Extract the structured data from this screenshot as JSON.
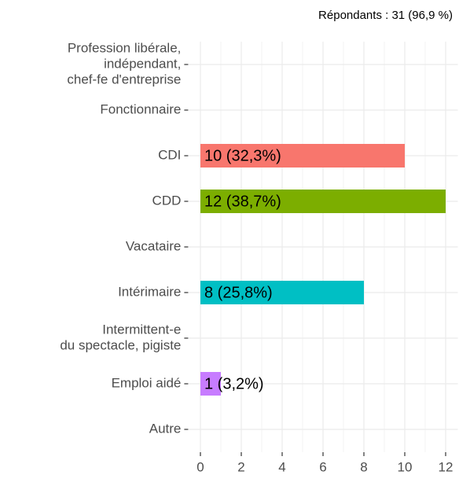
{
  "chart_data": {
    "type": "barh",
    "subtitle": "Répondants : 31 (96,9 %)",
    "categories": [
      [
        "Profession libérale,",
        "indépendant,",
        "chef-fe d'entreprise"
      ],
      [
        "Fonctionnaire"
      ],
      [
        "CDI"
      ],
      [
        "CDD"
      ],
      [
        "Vacataire"
      ],
      [
        "Intérimaire"
      ],
      [
        "Intermittent-e",
        "du spectacle, pigiste"
      ],
      [
        "Emploi aidé"
      ],
      [
        "Autre"
      ]
    ],
    "values": [
      0,
      0,
      10,
      12,
      0,
      8,
      0,
      1,
      0
    ],
    "value_labels": [
      null,
      null,
      "10 (32,3%)",
      "12 (38,7%)",
      null,
      "8 (25,8%)",
      null,
      "1 (3,2%)",
      null
    ],
    "colors": [
      null,
      null,
      "#F8766D",
      "#7CAE00",
      null,
      "#00BFC4",
      null,
      "#C77CFF",
      null
    ],
    "xlim": [
      -0.6,
      12.6
    ],
    "xticks": [
      0,
      2,
      4,
      6,
      8,
      10,
      12
    ],
    "grid": true,
    "minor_grid": true
  }
}
